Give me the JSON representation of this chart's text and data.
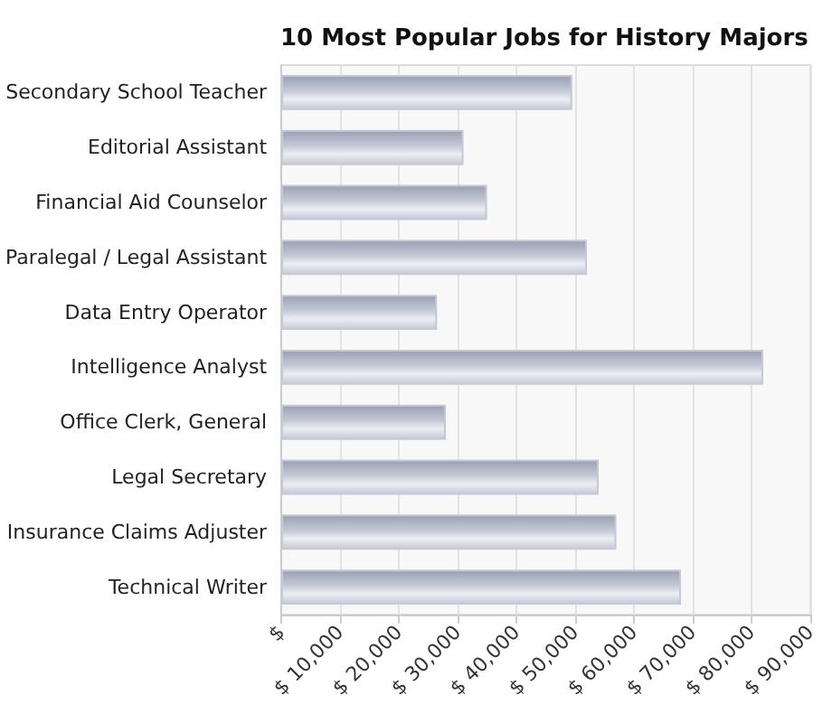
{
  "chart_data": {
    "type": "bar",
    "orientation": "horizontal",
    "title": "10 Most Popular Jobs for History Majors",
    "categories": [
      "Secondary School Teacher",
      "Editorial Assistant",
      "Financial Aid Counselor",
      "Paralegal / Legal Assistant",
      "Data Entry Operator",
      "Intelligence Analyst",
      "Office Clerk, General",
      "Legal Secretary",
      "Insurance Claims Adjuster",
      "Technical Writer"
    ],
    "values": [
      49500,
      31000,
      35000,
      52000,
      26500,
      82000,
      28000,
      54000,
      57000,
      68000
    ],
    "color": "#c5c9d6",
    "xlim": [
      0,
      90000
    ],
    "xticks": [
      {
        "value": 0,
        "label": "$"
      },
      {
        "value": 10000,
        "label": "$ 10,000"
      },
      {
        "value": 20000,
        "label": "$ 20,000"
      },
      {
        "value": 30000,
        "label": "$ 30,000"
      },
      {
        "value": 40000,
        "label": "$ 40,000"
      },
      {
        "value": 50000,
        "label": "$ 50,000"
      },
      {
        "value": 60000,
        "label": "$ 60,000"
      },
      {
        "value": 70000,
        "label": "$ 70,000"
      },
      {
        "value": 80000,
        "label": "$ 80,000"
      },
      {
        "value": 90000,
        "label": "$ 90,000"
      }
    ],
    "grid": "x"
  }
}
